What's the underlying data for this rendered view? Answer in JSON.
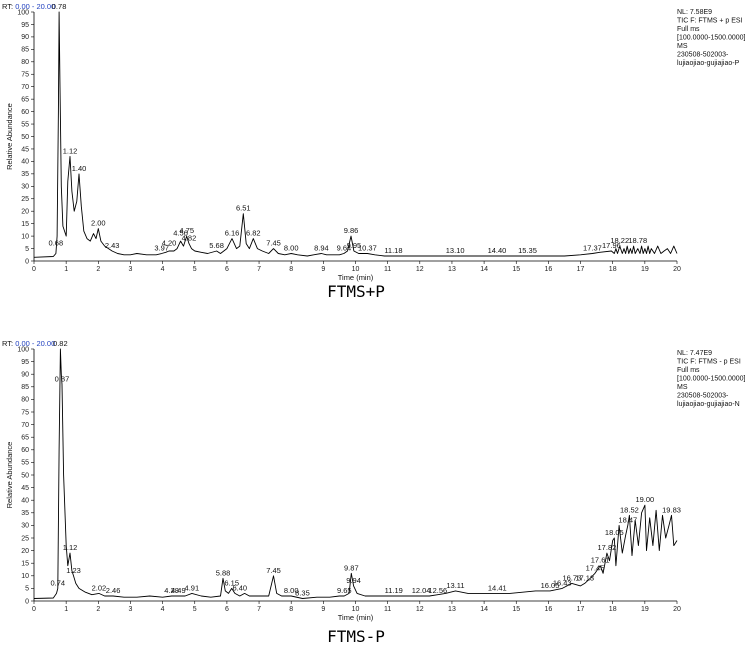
{
  "chart_data": [
    {
      "type": "line",
      "rt_label": "RT:",
      "rt_range": "0.00 - 20.00",
      "xlabel": "Time (min)",
      "ylabel": "Relative Abundance",
      "xlim": [
        0,
        20
      ],
      "ylim": [
        0,
        100
      ],
      "x_ticks": [
        0,
        1,
        2,
        3,
        4,
        5,
        6,
        7,
        8,
        9,
        10,
        11,
        12,
        13,
        14,
        15,
        16,
        17,
        18,
        19,
        20
      ],
      "y_ticks": [
        0,
        5,
        10,
        15,
        20,
        25,
        30,
        35,
        40,
        45,
        50,
        55,
        60,
        65,
        70,
        75,
        80,
        85,
        90,
        95,
        100
      ],
      "info": [
        "NL: 7.58E9",
        "TIC F: FTMS + p ESI",
        "Full ms",
        "[100.0000-1500.0000]",
        "MS",
        "230508-502003-",
        "lujiaojiao-gujiajiao-P"
      ],
      "caption": "FTMS+P",
      "peaks": [
        {
          "rt": 0.68,
          "y": 5,
          "label": "0.68"
        },
        {
          "rt": 0.78,
          "y": 100,
          "label": "0.78"
        },
        {
          "rt": 1.12,
          "y": 42,
          "label": "1.12"
        },
        {
          "rt": 1.4,
          "y": 35,
          "label": "1.40"
        },
        {
          "rt": 2.0,
          "y": 13,
          "label": "2.00"
        },
        {
          "rt": 2.43,
          "y": 4,
          "label": "2.43"
        },
        {
          "rt": 3.97,
          "y": 3,
          "label": "3.97"
        },
        {
          "rt": 4.2,
          "y": 5,
          "label": "4.20"
        },
        {
          "rt": 4.56,
          "y": 9,
          "label": "4.56"
        },
        {
          "rt": 4.75,
          "y": 10,
          "label": "4.75"
        },
        {
          "rt": 4.82,
          "y": 7,
          "label": "4.82"
        },
        {
          "rt": 5.68,
          "y": 4,
          "label": "5.68"
        },
        {
          "rt": 6.16,
          "y": 9,
          "label": "6.16"
        },
        {
          "rt": 6.51,
          "y": 19,
          "label": "6.51"
        },
        {
          "rt": 6.82,
          "y": 9,
          "label": "6.82"
        },
        {
          "rt": 7.45,
          "y": 5,
          "label": "7.45"
        },
        {
          "rt": 8.0,
          "y": 3,
          "label": "8.00"
        },
        {
          "rt": 8.94,
          "y": 3,
          "label": "8.94"
        },
        {
          "rt": 9.64,
          "y": 3,
          "label": "9.64"
        },
        {
          "rt": 9.86,
          "y": 10,
          "label": "9.86"
        },
        {
          "rt": 9.95,
          "y": 4,
          "label": "9.95"
        },
        {
          "rt": 10.37,
          "y": 3,
          "label": "10.37"
        },
        {
          "rt": 11.18,
          "y": 2,
          "label": "11.18"
        },
        {
          "rt": 13.1,
          "y": 2,
          "label": "13.10"
        },
        {
          "rt": 14.4,
          "y": 2,
          "label": "14.40"
        },
        {
          "rt": 15.35,
          "y": 2,
          "label": "15.35"
        },
        {
          "rt": 17.37,
          "y": 3,
          "label": "17.37"
        },
        {
          "rt": 17.96,
          "y": 4,
          "label": "17.96"
        },
        {
          "rt": 18.22,
          "y": 6,
          "label": "18.22"
        },
        {
          "rt": 18.78,
          "y": 6,
          "label": "18.78"
        }
      ],
      "trace_x": [
        0,
        0.6,
        0.68,
        0.72,
        0.76,
        0.78,
        0.81,
        0.85,
        0.9,
        1.0,
        1.05,
        1.12,
        1.18,
        1.25,
        1.33,
        1.4,
        1.47,
        1.55,
        1.65,
        1.75,
        1.85,
        1.93,
        2.0,
        2.08,
        2.2,
        2.43,
        2.6,
        2.8,
        3.0,
        3.2,
        3.5,
        3.8,
        3.97,
        4.1,
        4.2,
        4.35,
        4.45,
        4.56,
        4.65,
        4.75,
        4.82,
        4.9,
        5.0,
        5.2,
        5.4,
        5.68,
        5.8,
        6.0,
        6.16,
        6.3,
        6.4,
        6.51,
        6.6,
        6.7,
        6.82,
        6.95,
        7.1,
        7.3,
        7.45,
        7.6,
        7.8,
        8.0,
        8.2,
        8.5,
        8.7,
        8.94,
        9.1,
        9.3,
        9.5,
        9.64,
        9.75,
        9.86,
        9.95,
        10.1,
        10.37,
        10.6,
        10.9,
        11.18,
        11.5,
        12.0,
        12.5,
        13.1,
        13.5,
        14.0,
        14.4,
        15.0,
        15.35,
        16.0,
        16.5,
        17.0,
        17.37,
        17.6,
        17.96,
        18.05,
        18.1,
        18.15,
        18.22,
        18.3,
        18.35,
        18.4,
        18.45,
        18.5,
        18.55,
        18.6,
        18.65,
        18.7,
        18.78,
        18.85,
        18.9,
        18.95,
        19.0,
        19.05,
        19.1,
        19.15,
        19.2,
        19.3,
        19.4,
        19.5,
        19.6,
        19.7,
        19.8,
        19.9,
        20.0
      ],
      "trace_y": [
        1.5,
        1.8,
        3,
        10,
        60,
        100,
        70,
        30,
        14,
        10,
        32,
        42,
        28,
        20,
        24,
        35,
        22,
        12,
        9,
        8,
        11,
        9,
        13,
        8,
        6,
        4,
        3,
        2.5,
        2.5,
        3,
        2.5,
        2.5,
        3,
        3.5,
        4,
        4,
        5,
        8,
        6,
        10,
        7,
        5,
        4,
        3.5,
        3,
        4,
        3,
        5,
        9,
        5,
        6,
        19,
        7,
        5,
        9,
        5,
        4,
        3,
        5,
        3,
        2.5,
        3,
        2.5,
        2,
        2.5,
        3,
        2.5,
        2.5,
        2.5,
        3,
        4,
        10,
        4,
        3,
        3,
        2.5,
        2,
        2,
        2,
        2,
        2,
        2,
        2,
        2,
        2,
        2,
        2,
        2,
        2,
        2.5,
        3,
        3.5,
        4,
        3,
        5,
        3,
        6,
        3,
        5,
        3,
        6,
        3,
        5,
        3,
        6,
        3,
        5,
        3,
        6,
        3,
        5,
        3,
        6,
        3,
        5,
        3,
        6,
        3,
        4,
        5,
        3,
        6,
        3,
        5,
        3
      ]
    },
    {
      "type": "line",
      "rt_label": "RT:",
      "rt_range": "0.00 - 20.00",
      "xlabel": "Time (min)",
      "ylabel": "Relative Abundance",
      "xlim": [
        0,
        20
      ],
      "ylim": [
        0,
        100
      ],
      "x_ticks": [
        0,
        1,
        2,
        3,
        4,
        5,
        6,
        7,
        8,
        9,
        10,
        11,
        12,
        13,
        14,
        15,
        16,
        17,
        18,
        19,
        20
      ],
      "y_ticks": [
        0,
        5,
        10,
        15,
        20,
        25,
        30,
        35,
        40,
        45,
        50,
        55,
        60,
        65,
        70,
        75,
        80,
        85,
        90,
        95,
        100
      ],
      "info": [
        "NL: 7.47E9",
        "TIC F: FTMS - p ESI",
        "Full ms",
        "[100.0000-1500.0000]",
        "MS",
        "230508-502003-",
        "lujiaojiao-gujiajiao-N"
      ],
      "caption": "FTMS-P",
      "peaks": [
        {
          "rt": 0.74,
          "y": 5,
          "label": "0.74"
        },
        {
          "rt": 0.82,
          "y": 100,
          "label": "0.82"
        },
        {
          "rt": 0.87,
          "y": 86,
          "label": "0.87"
        },
        {
          "rt": 1.12,
          "y": 19,
          "label": "1.12"
        },
        {
          "rt": 1.23,
          "y": 10,
          "label": "1.23"
        },
        {
          "rt": 2.02,
          "y": 3,
          "label": "2.02"
        },
        {
          "rt": 2.46,
          "y": 2,
          "label": "2.46"
        },
        {
          "rt": 4.28,
          "y": 2,
          "label": "4.28"
        },
        {
          "rt": 4.49,
          "y": 2,
          "label": "4.49"
        },
        {
          "rt": 4.91,
          "y": 3,
          "label": "4.91"
        },
        {
          "rt": 5.88,
          "y": 9,
          "label": "5.88"
        },
        {
          "rt": 6.15,
          "y": 5,
          "label": "6.15"
        },
        {
          "rt": 6.4,
          "y": 3,
          "label": "6.40"
        },
        {
          "rt": 7.45,
          "y": 10,
          "label": "7.45"
        },
        {
          "rt": 8.0,
          "y": 2,
          "label": "8.00"
        },
        {
          "rt": 8.35,
          "y": 1,
          "label": "8.35"
        },
        {
          "rt": 9.65,
          "y": 2,
          "label": "9.65"
        },
        {
          "rt": 9.87,
          "y": 11,
          "label": "9.87"
        },
        {
          "rt": 9.94,
          "y": 6,
          "label": "9.94"
        },
        {
          "rt": 11.19,
          "y": 2,
          "label": "11.19"
        },
        {
          "rt": 12.04,
          "y": 2,
          "label": "12.04"
        },
        {
          "rt": 12.56,
          "y": 2,
          "label": "12.56"
        },
        {
          "rt": 13.11,
          "y": 4,
          "label": "13.11"
        },
        {
          "rt": 14.41,
          "y": 3,
          "label": "14.41"
        },
        {
          "rt": 16.05,
          "y": 4,
          "label": "16.05"
        },
        {
          "rt": 16.43,
          "y": 5,
          "label": "16.43"
        },
        {
          "rt": 16.73,
          "y": 7,
          "label": "16.73"
        },
        {
          "rt": 17.13,
          "y": 7,
          "label": "17.13"
        },
        {
          "rt": 17.45,
          "y": 11,
          "label": "17.45"
        },
        {
          "rt": 17.61,
          "y": 14,
          "label": "17.61"
        },
        {
          "rt": 17.82,
          "y": 19,
          "label": "17.82"
        },
        {
          "rt": 18.05,
          "y": 25,
          "label": "18.05"
        },
        {
          "rt": 18.47,
          "y": 30,
          "label": "18.47"
        },
        {
          "rt": 18.52,
          "y": 34,
          "label": "18.52"
        },
        {
          "rt": 19.0,
          "y": 38,
          "label": "19.00"
        },
        {
          "rt": 19.83,
          "y": 34,
          "label": "19.83"
        }
      ],
      "trace_x": [
        0,
        0.6,
        0.7,
        0.74,
        0.78,
        0.82,
        0.85,
        0.87,
        0.92,
        1.0,
        1.05,
        1.12,
        1.18,
        1.23,
        1.3,
        1.4,
        1.6,
        1.8,
        2.02,
        2.2,
        2.46,
        2.8,
        3.2,
        3.6,
        4.0,
        4.28,
        4.49,
        4.7,
        4.91,
        5.2,
        5.5,
        5.8,
        5.88,
        5.95,
        6.05,
        6.15,
        6.25,
        6.4,
        6.55,
        6.7,
        7.0,
        7.3,
        7.45,
        7.55,
        7.7,
        8.0,
        8.35,
        8.8,
        9.2,
        9.5,
        9.65,
        9.8,
        9.87,
        9.94,
        10.05,
        10.3,
        10.7,
        11.19,
        11.6,
        12.04,
        12.3,
        12.56,
        12.8,
        13.11,
        13.5,
        14.0,
        14.41,
        14.8,
        15.2,
        15.6,
        16.05,
        16.43,
        16.73,
        17.0,
        17.13,
        17.3,
        17.45,
        17.61,
        17.7,
        17.82,
        17.9,
        18.0,
        18.05,
        18.1,
        18.2,
        18.3,
        18.4,
        18.47,
        18.52,
        18.6,
        18.7,
        18.8,
        18.9,
        19.0,
        19.05,
        19.15,
        19.25,
        19.35,
        19.45,
        19.55,
        19.65,
        19.75,
        19.83,
        19.9,
        20.0
      ],
      "trace_y": [
        1,
        1.2,
        3,
        5,
        60,
        100,
        90,
        86,
        50,
        22,
        14,
        19,
        12,
        10,
        7,
        5,
        3.5,
        2.5,
        3,
        2,
        2,
        1.5,
        1.5,
        2,
        1.5,
        2,
        2,
        2,
        3,
        2,
        1.5,
        2,
        9,
        4,
        3,
        5,
        3,
        2,
        3,
        2,
        2,
        2,
        10,
        3,
        2,
        2,
        1,
        1.5,
        1.5,
        2,
        2,
        3,
        11,
        6,
        3,
        2,
        2,
        2,
        2,
        2,
        2,
        2.5,
        3,
        4,
        3,
        3,
        3,
        3,
        3.5,
        4,
        4,
        5,
        7,
        6,
        7,
        9,
        11,
        14,
        11,
        19,
        16,
        24,
        25,
        14,
        30,
        19,
        26,
        30,
        34,
        18,
        32,
        22,
        35,
        38,
        20,
        33,
        22,
        36,
        20,
        34,
        25,
        30,
        34,
        22,
        24
      ]
    }
  ]
}
